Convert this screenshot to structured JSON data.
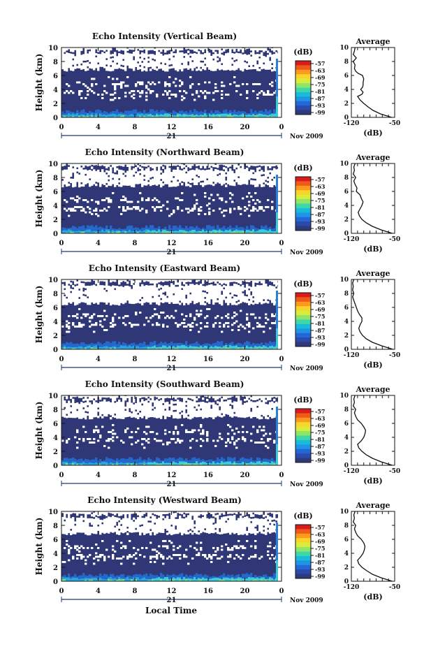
{
  "chart_data": [
    {
      "type": "heatmap",
      "title": "Echo Intensity (Vertical Beam)",
      "ylabel": "Height (km)",
      "yticks": [
        "0",
        "2",
        "4",
        "6",
        "8",
        "10"
      ],
      "ylim": [
        0,
        10
      ],
      "xticks": [
        "0",
        "4",
        "8",
        "12",
        "16",
        "20",
        "0"
      ],
      "xlim": [
        0,
        24
      ],
      "day_label": "21",
      "date_label": "Nov 2009",
      "colorbar": {
        "title": "(dB)",
        "ticks": [
          "-57",
          "-63",
          "-69",
          "-75",
          "-81",
          "-87",
          "-93",
          "-99"
        ],
        "colors": [
          "#d81c1c",
          "#f05a18",
          "#fb9a1e",
          "#f9d52c",
          "#d8ec3c",
          "#8ee56a",
          "#3fd7a8",
          "#18bcd9",
          "#1e96e3",
          "#2368d6",
          "#2c4aa9",
          "#2e3a7a"
        ]
      },
      "profile": {
        "title": "Average",
        "xlabel": "(dB)",
        "xticks": [
          "-120",
          "-50"
        ],
        "xlim": [
          -120,
          -50
        ],
        "yticks": [
          "0",
          "2",
          "4",
          "6",
          "8",
          "10"
        ],
        "heights": [
          0.0,
          0.5,
          1.0,
          1.5,
          2.0,
          2.5,
          3.0,
          3.3,
          3.6,
          4.0,
          4.3,
          4.6,
          5.0,
          5.5,
          6.0,
          6.3,
          6.6,
          7.0,
          7.5,
          8.0,
          8.5,
          9.0,
          9.5,
          10.0
        ],
        "values": [
          -55,
          -73,
          -85,
          -93,
          -100,
          -106,
          -110,
          -103,
          -101,
          -105,
          -102,
          -101,
          -101,
          -100,
          -102,
          -109,
          -113,
          -115,
          -114,
          -117,
          -112,
          -117,
          -115,
          -114
        ]
      }
    },
    {
      "type": "heatmap",
      "title": "Echo Intensity (Northward Beam)",
      "ylabel": "Height (km)",
      "yticks": [
        "0",
        "2",
        "4",
        "6",
        "8",
        "10"
      ],
      "ylim": [
        0,
        10
      ],
      "xticks": [
        "0",
        "4",
        "8",
        "12",
        "16",
        "20",
        "0"
      ],
      "xlim": [
        0,
        24
      ],
      "day_label": "21",
      "date_label": "Nov 2009",
      "colorbar": {
        "title": "(dB)",
        "ticks": [
          "-57",
          "-63",
          "-69",
          "-75",
          "-81",
          "-87",
          "-93",
          "-99"
        ],
        "colors": [
          "#d81c1c",
          "#f05a18",
          "#fb9a1e",
          "#f9d52c",
          "#d8ec3c",
          "#8ee56a",
          "#3fd7a8",
          "#18bcd9",
          "#1e96e3",
          "#2368d6",
          "#2c4aa9",
          "#2e3a7a"
        ]
      },
      "profile": {
        "title": "Average",
        "xlabel": "(dB)",
        "xticks": [
          "-120",
          "-50"
        ],
        "xlim": [
          -120,
          -50
        ],
        "heights": [
          0.0,
          0.5,
          1.0,
          1.5,
          2.0,
          2.5,
          3.0,
          3.5,
          4.0,
          4.5,
          5.0,
          5.5,
          6.0,
          6.5,
          7.0,
          7.5,
          8.0,
          8.5,
          9.0,
          9.5,
          10.0
        ],
        "values": [
          -54,
          -72,
          -86,
          -96,
          -103,
          -107,
          -109,
          -106,
          -103,
          -101,
          -104,
          -106,
          -112,
          -111,
          -114,
          -116,
          -113,
          -117,
          -115,
          -116,
          -114
        ]
      }
    },
    {
      "type": "heatmap",
      "title": "Echo Intensity (Eastward Beam)",
      "ylabel": "Height (km)",
      "yticks": [
        "0",
        "2",
        "4",
        "6",
        "8",
        "10"
      ],
      "ylim": [
        0,
        10
      ],
      "xticks": [
        "0",
        "4",
        "8",
        "12",
        "16",
        "20",
        "0"
      ],
      "xlim": [
        0,
        24
      ],
      "day_label": "21",
      "date_label": "Nov 2009",
      "colorbar": {
        "title": "(dB)",
        "ticks": [
          "-57",
          "-63",
          "-69",
          "-75",
          "-81",
          "-87",
          "-93",
          "-99"
        ],
        "colors": [
          "#d81c1c",
          "#f05a18",
          "#fb9a1e",
          "#f9d52c",
          "#d8ec3c",
          "#8ee56a",
          "#3fd7a8",
          "#18bcd9",
          "#1e96e3",
          "#2368d6",
          "#2c4aa9",
          "#2e3a7a"
        ]
      },
      "profile": {
        "title": "Average",
        "xlabel": "(dB)",
        "xticks": [
          "-120",
          "-50"
        ],
        "xlim": [
          -120,
          -50
        ],
        "heights": [
          0.0,
          0.5,
          1.0,
          1.5,
          2.0,
          2.5,
          3.0,
          3.5,
          4.0,
          4.5,
          5.0,
          5.5,
          6.0,
          6.5,
          7.0,
          7.5,
          8.0,
          8.5,
          9.0,
          9.5,
          10.0
        ],
        "values": [
          -53,
          -71,
          -86,
          -96,
          -102,
          -106,
          -108,
          -106,
          -103,
          -103,
          -107,
          -110,
          -112,
          -114,
          -116,
          -118,
          -116,
          -118,
          -117,
          -118,
          -116
        ]
      }
    },
    {
      "type": "heatmap",
      "title": "Echo Intensity (Southward Beam)",
      "ylabel": "Height (km)",
      "yticks": [
        "0",
        "2",
        "4",
        "6",
        "8",
        "10"
      ],
      "ylim": [
        0,
        10
      ],
      "xticks": [
        "0",
        "4",
        "8",
        "12",
        "16",
        "20",
        "0"
      ],
      "xlim": [
        0,
        24
      ],
      "day_label": "21",
      "date_label": "Nov 2009",
      "colorbar": {
        "title": "(dB)",
        "ticks": [
          "-57",
          "-63",
          "-69",
          "-75",
          "-81",
          "-87",
          "-93",
          "-99"
        ],
        "colors": [
          "#d81c1c",
          "#f05a18",
          "#fb9a1e",
          "#f9d52c",
          "#d8ec3c",
          "#8ee56a",
          "#3fd7a8",
          "#18bcd9",
          "#1e96e3",
          "#2368d6",
          "#2c4aa9",
          "#2e3a7a"
        ]
      },
      "profile": {
        "title": "Average",
        "xlabel": "(dB)",
        "xticks": [
          "-120",
          "-50"
        ],
        "xlim": [
          -120,
          -50
        ],
        "heights": [
          0.0,
          0.5,
          1.0,
          1.5,
          2.0,
          2.5,
          3.0,
          3.5,
          4.0,
          4.5,
          5.0,
          5.5,
          6.0,
          6.5,
          7.0,
          7.5,
          8.0,
          8.5,
          9.0,
          9.5,
          10.0
        ],
        "values": [
          -54,
          -72,
          -86,
          -96,
          -103,
          -108,
          -110,
          -104,
          -100,
          -98,
          -97,
          -100,
          -104,
          -110,
          -113,
          -115,
          -113,
          -117,
          -115,
          -116,
          -114
        ]
      }
    },
    {
      "type": "heatmap",
      "title": "Echo Intensity (Westward Beam)",
      "ylabel": "Height (km)",
      "yticks": [
        "0",
        "2",
        "4",
        "6",
        "8",
        "10"
      ],
      "ylim": [
        0,
        10
      ],
      "xticks": [
        "0",
        "4",
        "8",
        "12",
        "16",
        "20",
        "0"
      ],
      "xlim": [
        0,
        24
      ],
      "day_label": "21",
      "date_label": "Nov 2009",
      "xlabel": "Local Time",
      "colorbar": {
        "title": "(dB)",
        "ticks": [
          "-57",
          "-63",
          "-69",
          "-75",
          "-81",
          "-87",
          "-93",
          "-99"
        ],
        "colors": [
          "#d81c1c",
          "#f05a18",
          "#fb9a1e",
          "#f9d52c",
          "#d8ec3c",
          "#8ee56a",
          "#3fd7a8",
          "#18bcd9",
          "#1e96e3",
          "#2368d6",
          "#2c4aa9",
          "#2e3a7a"
        ]
      },
      "profile": {
        "title": "Average",
        "xlabel": "(dB)",
        "xticks": [
          "-120",
          "-50"
        ],
        "xlim": [
          -120,
          -50
        ],
        "heights": [
          0.0,
          0.5,
          1.0,
          1.5,
          2.0,
          2.5,
          3.0,
          3.5,
          4.0,
          4.5,
          5.0,
          5.5,
          6.0,
          6.5,
          7.0,
          7.5,
          8.0,
          8.5,
          9.0,
          9.5,
          10.0
        ],
        "values": [
          -54,
          -72,
          -86,
          -95,
          -103,
          -108,
          -110,
          -105,
          -101,
          -99,
          -98,
          -100,
          -104,
          -110,
          -113,
          -115,
          -113,
          -117,
          -115,
          -116,
          -114
        ]
      }
    }
  ],
  "colors": {
    "background": "#2f3777",
    "gap": "#ffffff",
    "axis": "#1e3a6e"
  }
}
